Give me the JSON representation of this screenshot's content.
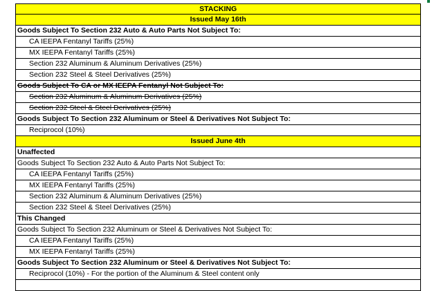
{
  "sheet": {
    "title": "STACKING",
    "sections": [
      {
        "type": "header",
        "text": "Issued May 16th"
      },
      {
        "type": "label",
        "text": "Goods Subject To Section 232 Auto & Auto Parts Not Subject To:",
        "bold": true
      },
      {
        "type": "item",
        "text": "CA IEEPA Fentanyl Tariffs (25%)"
      },
      {
        "type": "item",
        "text": "MX IEEPA Fentanyl Tariffs (25%)"
      },
      {
        "type": "item",
        "text": "Section 232 Aluminum & Aluminum Derivatives (25%)"
      },
      {
        "type": "item",
        "text": "Section 232 Steel & Steel Derivatives (25%)"
      },
      {
        "type": "label",
        "text": "Goods Subject To CA or MX IEEPA Fentanyl Not Subject To:",
        "bold": true,
        "strike": true
      },
      {
        "type": "item",
        "text": "Section 232 Aluminum & Aluminum Derivatives (25%)",
        "strike": true
      },
      {
        "type": "item",
        "text": "Section 232 Steel & Steel Derivatives (25%)",
        "strike": true
      },
      {
        "type": "label",
        "text": "Goods Subject To Section 232 Aluminum or Steel & Derivatives Not Subject To:",
        "bold": true
      },
      {
        "type": "item",
        "text": "Reciprocol (10%)"
      },
      {
        "type": "header",
        "text": "Issued June 4th"
      },
      {
        "type": "label",
        "text": "Unaffected",
        "bold": true
      },
      {
        "type": "label",
        "text": "Goods Subject To Section 232 Auto & Auto Parts Not Subject To:"
      },
      {
        "type": "item",
        "text": "CA IEEPA Fentanyl Tariffs (25%)"
      },
      {
        "type": "item",
        "text": "MX IEEPA Fentanyl Tariffs (25%)"
      },
      {
        "type": "item",
        "text": "Section 232 Aluminum & Aluminum Derivatives (25%)"
      },
      {
        "type": "item",
        "text": "Section 232 Steel & Steel Derivatives (25%)"
      },
      {
        "type": "label",
        "text": "This Changed",
        "bold": true
      },
      {
        "type": "label",
        "text": "Goods Subject To Section 232 Aluminum or Steel & Derivatives Not Subject To:"
      },
      {
        "type": "item",
        "text": "CA IEEPA Fentanyl Tariffs (25%)"
      },
      {
        "type": "item",
        "text": "MX IEEPA Fentanyl Tariffs (25%)"
      },
      {
        "type": "label",
        "text": "Goods Subject To Section 232 Aluminum or Steel & Derivatives Not Subject To:",
        "bold": true
      },
      {
        "type": "item",
        "text": "Reciprocol (10%) - For the portion of the Aluminum & Steel content only"
      },
      {
        "type": "blank",
        "text": ""
      }
    ]
  },
  "colors": {
    "header_fill": "#ffff00",
    "border": "#000000",
    "gridline": "#d4d4d4",
    "selection": "#107c41"
  }
}
